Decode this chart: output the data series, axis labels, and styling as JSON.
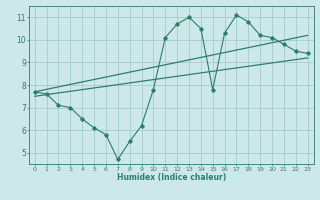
{
  "xlabel": "Humidex (Indice chaleur)",
  "ylabel": "",
  "bg_color": "#cce8e8",
  "grid_color": "#aacfcf",
  "line_color": "#2e7d6e",
  "xlim": [
    -0.5,
    23.5
  ],
  "ylim": [
    4.5,
    11.5
  ],
  "xticks": [
    0,
    1,
    2,
    3,
    4,
    5,
    6,
    7,
    8,
    9,
    10,
    11,
    12,
    13,
    14,
    15,
    16,
    17,
    18,
    19,
    20,
    21,
    22,
    23
  ],
  "yticks": [
    5,
    6,
    7,
    8,
    9,
    10,
    11
  ],
  "scatter_x": [
    0,
    1,
    2,
    3,
    4,
    5,
    6,
    7,
    8,
    9,
    10,
    11,
    12,
    13,
    14,
    15,
    16,
    17,
    18,
    19,
    20,
    21,
    22,
    23
  ],
  "scatter_y": [
    7.7,
    7.6,
    7.1,
    7.0,
    6.5,
    6.1,
    5.8,
    4.7,
    5.5,
    6.2,
    7.8,
    10.1,
    10.7,
    11.0,
    10.5,
    7.8,
    10.3,
    11.1,
    10.8,
    10.2,
    10.1,
    9.8,
    9.5,
    9.4
  ],
  "line1_x": [
    0,
    23
  ],
  "line1_y": [
    7.7,
    10.2
  ],
  "line2_x": [
    0,
    23
  ],
  "line2_y": [
    7.5,
    9.2
  ]
}
